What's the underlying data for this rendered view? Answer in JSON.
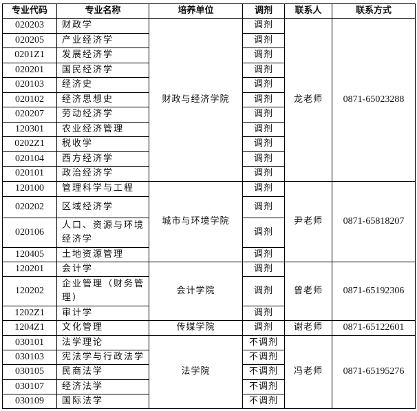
{
  "headers": [
    "专业代码",
    "专业名称",
    "培养单位",
    "调剂",
    "联系人",
    "联系方式"
  ],
  "groups": [
    {
      "unit": "财政与经济学院",
      "contact": "龙老师",
      "phone": "0871-65023288",
      "rows": [
        {
          "code": "020203",
          "name": "财政学",
          "adjust": "调剂"
        },
        {
          "code": "020205",
          "name": "产业经济学",
          "adjust": "调剂"
        },
        {
          "code": "0201Z1",
          "name": "发展经济学",
          "adjust": "调剂"
        },
        {
          "code": "020201",
          "name": "国民经济学",
          "adjust": "调剂"
        },
        {
          "code": "020103",
          "name": "经济史",
          "adjust": "调剂"
        },
        {
          "code": "020102",
          "name": "经济思想史",
          "adjust": "调剂"
        },
        {
          "code": "020207",
          "name": "劳动经济学",
          "adjust": "调剂"
        },
        {
          "code": "120301",
          "name": "农业经济管理",
          "adjust": "调剂"
        },
        {
          "code": "0202Z1",
          "name": "税收学",
          "adjust": "调剂"
        },
        {
          "code": "020104",
          "name": "西方经济学",
          "adjust": "调剂"
        },
        {
          "code": "020101",
          "name": "政治经济学",
          "adjust": "调剂"
        }
      ]
    },
    {
      "unit": "城市与环境学院",
      "contact": "尹老师",
      "phone": "0871-65818207",
      "rows": [
        {
          "code": "120100",
          "name": "管理科学与工程",
          "adjust": "调剂"
        },
        {
          "code": "020202",
          "name": "区域经济学",
          "adjust": "调剂"
        },
        {
          "code": "020106",
          "name": "人口、资源与环境经济学",
          "adjust": "调剂"
        },
        {
          "code": "120405",
          "name": "土地资源管理",
          "adjust": "调剂"
        }
      ]
    },
    {
      "unit": "会计学院",
      "contact": "曾老师",
      "phone": "0871-65192306",
      "rows": [
        {
          "code": "120201",
          "name": "会计学",
          "adjust": "调剂"
        },
        {
          "code": "120202",
          "name": "企业管理（财务管理）",
          "adjust": "调剂"
        },
        {
          "code": "1202Z1",
          "name": "审计学",
          "adjust": "调剂"
        }
      ]
    },
    {
      "unit": "传媒学院",
      "contact": "谢老师",
      "phone": "0871-65122601",
      "rows": [
        {
          "code": "1204Z1",
          "name": "文化管理",
          "adjust": "调剂"
        }
      ]
    },
    {
      "unit": "法学院",
      "contact": "冯老师",
      "phone": "0871-65195276",
      "rows": [
        {
          "code": "030101",
          "name": "法学理论",
          "adjust": "不调剂"
        },
        {
          "code": "030103",
          "name": "宪法学与行政法学",
          "adjust": "不调剂"
        },
        {
          "code": "030105",
          "name": "民商法学",
          "adjust": "不调剂"
        },
        {
          "code": "030107",
          "name": "经济法学",
          "adjust": "不调剂"
        },
        {
          "code": "030109",
          "name": "国际法学",
          "adjust": "不调剂"
        }
      ]
    }
  ]
}
